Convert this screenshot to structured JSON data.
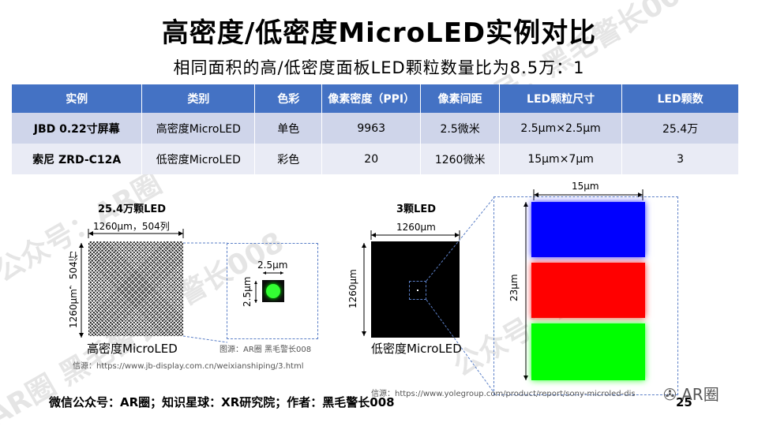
{
  "title": "高密度/低密度MicroLED实例对比",
  "subtitle": "相同面积的高/低密度面板LED颗粒数量比为8.5万：1",
  "table": {
    "headers": [
      "实例",
      "类别",
      "色彩",
      "像素密度（PPI）",
      "像素间距",
      "LED颗粒尺寸",
      "LED颗数"
    ],
    "rows": [
      [
        "JBD 0.22寸屏幕",
        "高密度MicroLED",
        "单色",
        "9963",
        "2.5微米",
        "2.5μm×2.5μm",
        "25.4万"
      ],
      [
        "索尼 ZRD-C12A",
        "低密度MicroLED",
        "彩色",
        "20",
        "1260微米",
        "15μm×7μm",
        "3"
      ]
    ]
  },
  "left_figure": {
    "caption": "25.4万颗LED",
    "width_label": "1260μm，504列",
    "height_label": "1260μm，504行",
    "zoom_width": "2.5μm",
    "zoom_height": "2.5μm",
    "bottom_label": "高密度MicroLED",
    "image_credit": "图源：AR圈 黑毛警长008",
    "source": "信源：https://www.jb-display.com.cn/weixianshiping/3.html"
  },
  "right_figure": {
    "caption": "3颗LED",
    "width_label": "1260μm",
    "height_label": "1260μm",
    "bottom_label": "低密度MicroLED",
    "zoom_width": "15μm",
    "zoom_height": "23μm",
    "led_colors": [
      "#0000ff",
      "#ff0000",
      "#00ff00"
    ],
    "source": "信源：https://www.yolegroup.com/product/report/sony-microled-dis"
  },
  "footer": {
    "text": "微信公众号：AR圈；知识星球：XR研究院；作者：黑毛警长008",
    "page_number": "25",
    "brand": "AR圈"
  },
  "colors": {
    "header_blue": "#4472c4",
    "row_dark": "#cfd5ea",
    "row_light": "#e9ebf5",
    "accent_green": "#00ff00"
  }
}
